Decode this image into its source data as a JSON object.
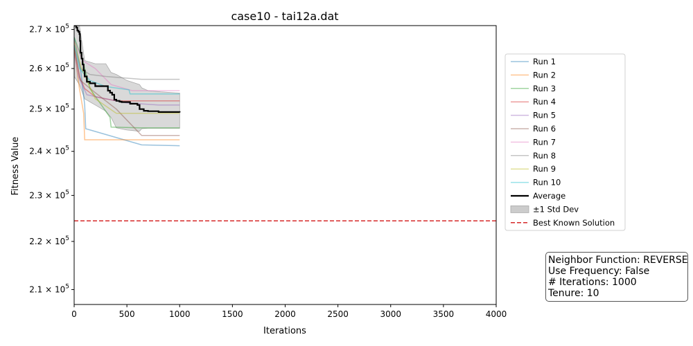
{
  "chart_data": {
    "type": "line",
    "title": "case10 - tai12a.dat",
    "xlabel": "Iterations",
    "ylabel": "Fitness Value",
    "y_scale": "log",
    "xlim": [
      0,
      4000
    ],
    "ylim": [
      207000,
      271000
    ],
    "x_ticks": [
      0,
      500,
      1000,
      1500,
      2000,
      2500,
      3000,
      3500,
      4000
    ],
    "y_ticks": [
      {
        "value": 210000,
        "mantissa": "2.1"
      },
      {
        "value": 220000,
        "mantissa": "2.2"
      },
      {
        "value": 230000,
        "mantissa": "2.3"
      },
      {
        "value": 240000,
        "mantissa": "2.4"
      },
      {
        "value": 250000,
        "mantissa": "2.5"
      },
      {
        "value": 260000,
        "mantissa": "2.6"
      },
      {
        "value": 270000,
        "mantissa": "2.7"
      }
    ],
    "tick_base": "× 10",
    "tick_exp": "5",
    "series": [
      {
        "name": "Run 1",
        "color": "#1f77b4",
        "x": [
          0,
          60,
          100,
          110,
          640,
          1000
        ],
        "y": [
          268000,
          260000,
          251000,
          245300,
          241500,
          241300
        ]
      },
      {
        "name": "Run 2",
        "color": "#ff7f0e",
        "x": [
          0,
          50,
          90,
          100,
          1000
        ],
        "y": [
          265000,
          255000,
          249000,
          242700,
          242700
        ]
      },
      {
        "name": "Run 3",
        "color": "#2ca02c",
        "x": [
          0,
          80,
          150,
          340,
          350,
          620,
          1000
        ],
        "y": [
          268000,
          262000,
          255000,
          248000,
          245700,
          245500,
          245500
        ]
      },
      {
        "name": "Run 4",
        "color": "#d62728",
        "x": [
          0,
          50,
          100,
          200,
          400,
          630,
          1000
        ],
        "y": [
          266000,
          258000,
          255000,
          253000,
          252000,
          252000,
          252000
        ]
      },
      {
        "name": "Run 5",
        "color": "#9467bd",
        "x": [
          0,
          40,
          120,
          300,
          500,
          800,
          1000
        ],
        "y": [
          264000,
          258000,
          253500,
          252500,
          251500,
          251000,
          251000
        ]
      },
      {
        "name": "Run 6",
        "color": "#8c564b",
        "x": [
          0,
          60,
          200,
          400,
          640,
          1000
        ],
        "y": [
          265000,
          257000,
          254000,
          250000,
          243700,
          243700
        ]
      },
      {
        "name": "Run 7",
        "color": "#e377c2",
        "x": [
          0,
          80,
          200,
          350,
          550,
          1000
        ],
        "y": [
          267000,
          262000,
          260000,
          256000,
          254500,
          254500
        ]
      },
      {
        "name": "Run 8",
        "color": "#7f7f7f",
        "x": [
          0,
          60,
          150,
          300,
          640,
          1000
        ],
        "y": [
          266000,
          260000,
          258500,
          258000,
          257300,
          257300
        ]
      },
      {
        "name": "Run 9",
        "color": "#bcbd22",
        "x": [
          0,
          70,
          200,
          400,
          1000
        ],
        "y": [
          267000,
          260000,
          252500,
          249000,
          249000
        ]
      },
      {
        "name": "Run 10",
        "color": "#17becf",
        "x": [
          0,
          50,
          150,
          300,
          520,
          530,
          1000
        ],
        "y": [
          266000,
          260000,
          257000,
          255500,
          254700,
          253700,
          253700
        ]
      }
    ],
    "average": {
      "name": "Average",
      "color": "#000000",
      "x": [
        0,
        20,
        30,
        40,
        50,
        55,
        60,
        70,
        80,
        90,
        100,
        120,
        150,
        200,
        300,
        320,
        340,
        360,
        380,
        400,
        430,
        450,
        530,
        600,
        620,
        660,
        700,
        800,
        1000
      ],
      "y": [
        271000,
        270500,
        269700,
        269400,
        268800,
        267000,
        264000,
        262500,
        261000,
        259500,
        258000,
        256700,
        256300,
        255600,
        255600,
        254500,
        254000,
        253500,
        252300,
        252000,
        251800,
        251700,
        251300,
        251000,
        250000,
        249600,
        249500,
        249300,
        249200
      ]
    },
    "std_band": {
      "name": "±1 Std Dev",
      "color": "#cccccc",
      "x": [
        0,
        50,
        100,
        200,
        300,
        350,
        400,
        500,
        620,
        640,
        700,
        820,
        1000
      ],
      "upper": [
        272000,
        272000,
        262000,
        261200,
        261200,
        259000,
        258500,
        257000,
        256000,
        255200,
        254500,
        254200,
        253900
      ],
      "lower": [
        258000,
        256000,
        252500,
        251000,
        249500,
        248000,
        245500,
        245000,
        244700,
        245300,
        245400,
        245400,
        245400
      ]
    },
    "reference": {
      "name": "Best Known Solution",
      "color": "#d62728",
      "value": 224416
    },
    "legend_position": "right"
  },
  "info": {
    "neighbor_function": "Neighbor Function: REVERSE",
    "use_frequency": "Use Frequency: False",
    "iterations": "# Iterations: 1000",
    "tenure": "Tenure: 10"
  }
}
